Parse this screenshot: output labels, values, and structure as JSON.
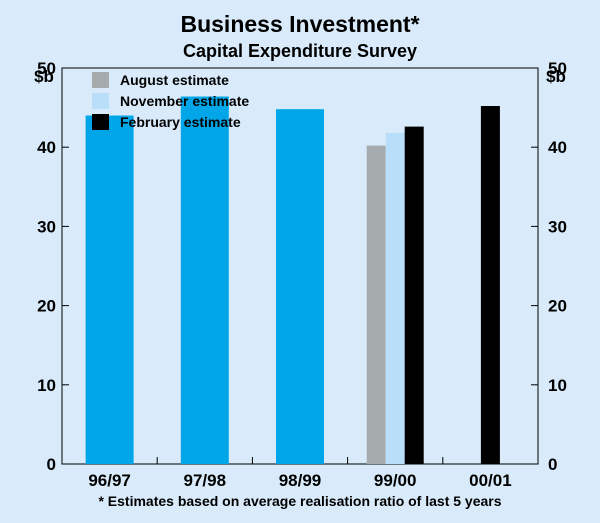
{
  "chart_data": {
    "type": "bar",
    "title": "Business Investment*",
    "subtitle": "Capital Expenditure Survey",
    "y_unit_left": "$b",
    "y_unit_right": "$b",
    "ylim": [
      0,
      50
    ],
    "yticks": [
      0,
      10,
      20,
      30,
      40,
      50
    ],
    "categories": [
      "96/97",
      "97/98",
      "98/99",
      "99/00",
      "00/01"
    ],
    "actual_series": {
      "values": [
        44.0,
        46.4,
        44.8,
        null,
        null
      ],
      "color": "#00a6e8"
    },
    "series": [
      {
        "name": "August estimate",
        "color": "#a6abae",
        "values": [
          null,
          null,
          null,
          40.2,
          null
        ]
      },
      {
        "name": "November estimate",
        "color": "#b8defa",
        "values": [
          null,
          null,
          null,
          41.8,
          null
        ]
      },
      {
        "name": "February estimate",
        "color": "#000000",
        "values": [
          null,
          null,
          null,
          42.6,
          45.2
        ]
      }
    ],
    "footnote": "* Estimates based on average realisation ratio of last 5 years",
    "legend_position": "top-left",
    "grid": false
  }
}
